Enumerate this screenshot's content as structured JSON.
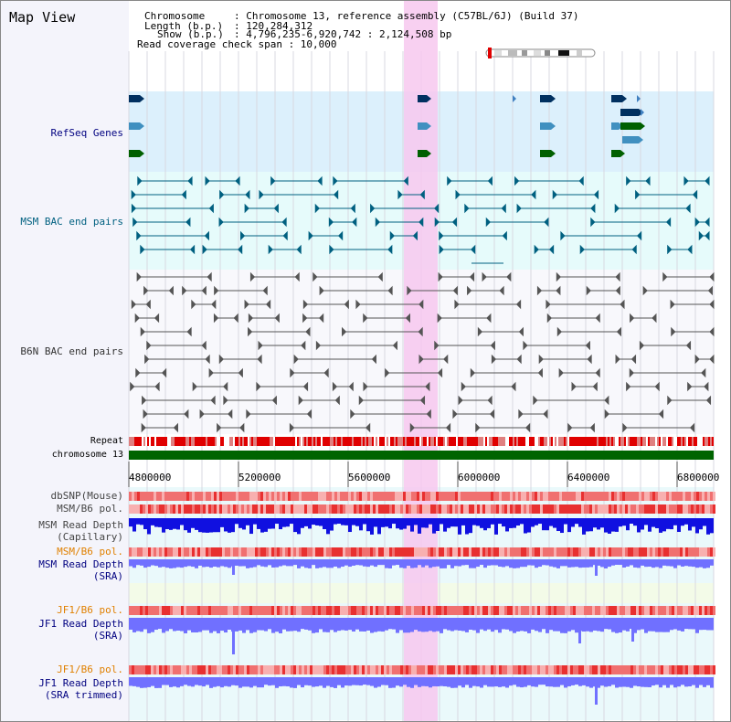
{
  "view": {
    "title": "Map View",
    "info": {
      "chromosome_key": "Chromosome",
      "chromosome_value": ": Chromosome 13, reference assembly (C57BL/6J) (Build 37)",
      "length_key": "Length (b.p.)",
      "length_value": ": 120,284,312",
      "show_key": "Show (b.p.)",
      "show_value": ": 4,796,235-6,920,742 : 2,124,508 bp",
      "coverage_line": "Read coverage check span : 10,000"
    }
  },
  "tracks": {
    "refseq": "RefSeq Genes",
    "msm_bac": "MSM BAC end pairs",
    "b6n_bac": "B6N BAC end pairs",
    "repeat": "Repeat",
    "chromosome": "chromosome 13",
    "dbsnp": "dbSNP(Mouse)",
    "msm_b6_pol_1": "MSM/B6 pol.",
    "msm_depth_cap_1": "MSM Read Depth",
    "msm_depth_cap_2": "(Capillary)",
    "msm_b6_pol_2": "MSM/B6 pol.",
    "msm_depth_sra_1": "MSM Read Depth",
    "msm_depth_sra_2": "(SRA)",
    "jf1_b6_pol_1": "JF1/B6 pol.",
    "jf1_depth_sra_1": "JF1 Read Depth",
    "jf1_depth_sra_2": "(SRA)",
    "jf1_b6_pol_2": "JF1/B6 pol.",
    "jf1_depth_trim_1": "JF1 Read Depth",
    "jf1_depth_trim_2": "(SRA trimmed)"
  },
  "axis": {
    "ticks": [
      "4800000",
      "5200000",
      "5600000",
      "6000000",
      "6400000",
      "6800000"
    ]
  },
  "colors": {
    "refseq_bg": "#dcf0fc",
    "msm_bac_bg": "#e6fbfb",
    "highlight": "#f7c8ef",
    "chromosome_bar": "#006400",
    "label_navy": "#000080",
    "label_teal": "#006080",
    "label_gray": "#333333",
    "label_orange": "#e08000",
    "depth_blue": "#1010e0",
    "depth_violet": "#7070ff"
  }
}
